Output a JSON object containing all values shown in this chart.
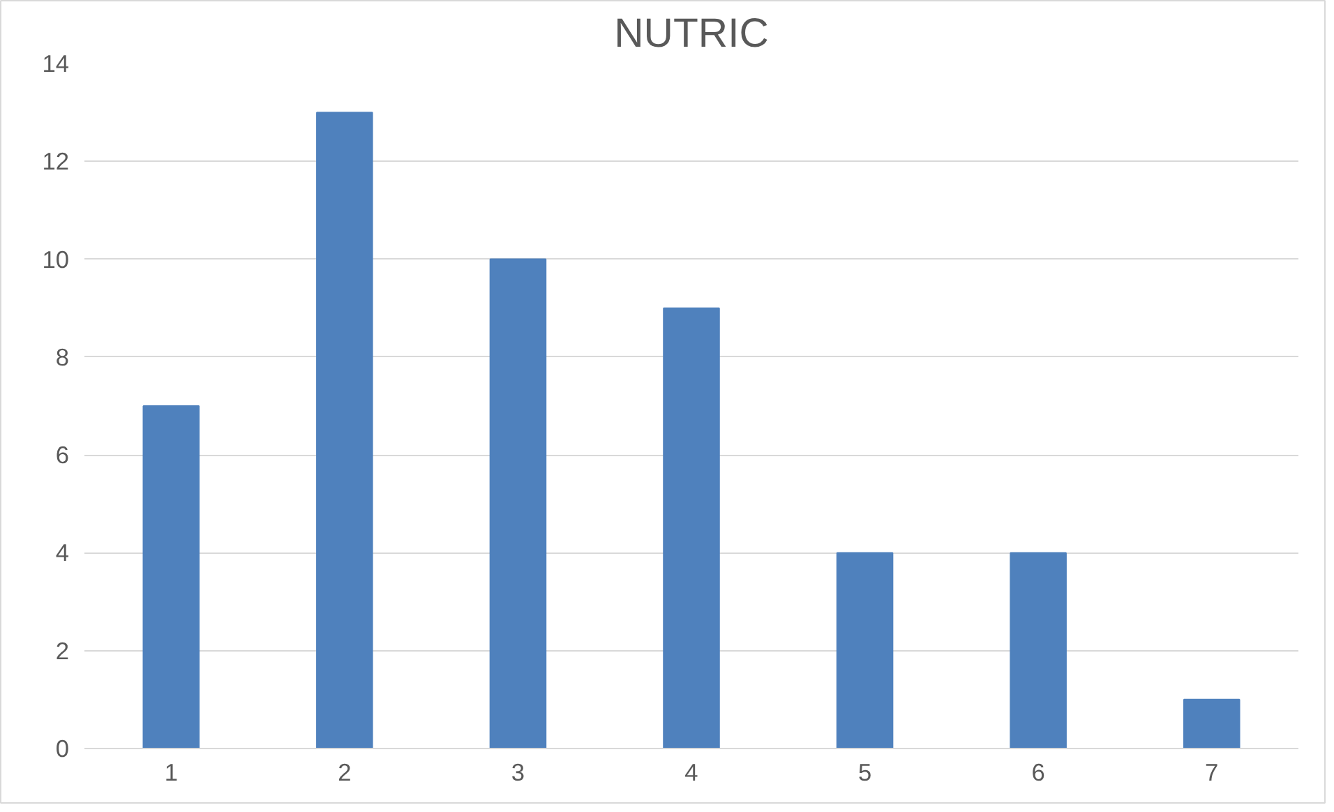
{
  "chart_data": {
    "type": "bar",
    "title": "NUTRIC",
    "categories": [
      "1",
      "2",
      "3",
      "4",
      "5",
      "6",
      "7"
    ],
    "values": [
      7,
      13,
      10,
      9,
      4,
      4,
      1
    ],
    "color": "#4f81bd",
    "ylim": [
      0,
      14
    ],
    "yticks": [
      0,
      2,
      4,
      6,
      8,
      10,
      12,
      14
    ],
    "grid": "y"
  }
}
